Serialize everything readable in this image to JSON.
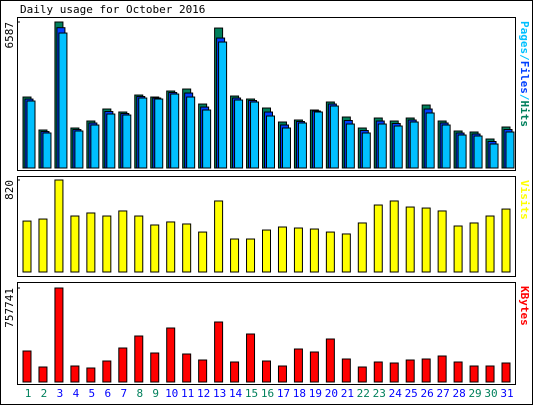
{
  "chart_data": [
    {
      "type": "bar",
      "title": "Daily usage for October 2016",
      "legend_separator": "/",
      "ylim": [
        0,
        6587
      ],
      "yticks": [
        6587
      ],
      "series": [
        {
          "name": "Hits",
          "color": "#00805c",
          "values": [
            3202,
            1714,
            6587,
            1804,
            2120,
            2661,
            2526,
            3292,
            3202,
            3473,
            3563,
            2886,
            6314,
            3247,
            3112,
            2706,
            2075,
            2165,
            2616,
            2977,
            2300,
            1804,
            2255,
            2120,
            2255,
            2841,
            2120,
            1669,
            1624,
            1308,
            1849
          ]
        },
        {
          "name": "Files",
          "color": "#0040ff",
          "values": [
            3110,
            1645,
            6330,
            1735,
            2030,
            2548,
            2458,
            3225,
            3157,
            3405,
            3382,
            2750,
            5863,
            3157,
            3045,
            2525,
            1940,
            2098,
            2571,
            2886,
            2142,
            1690,
            2120,
            2007,
            2165,
            2661,
            2030,
            1578,
            1533,
            1195,
            1736
          ]
        },
        {
          "name": "Pages",
          "color": "#00c0ff",
          "values": [
            3022,
            1579,
            6089,
            1669,
            1939,
            2435,
            2390,
            3157,
            3112,
            3337,
            3202,
            2616,
            5683,
            3067,
            2977,
            2345,
            1804,
            2030,
            2526,
            2796,
            1984,
            1579,
            1984,
            1894,
            2075,
            2481,
            1939,
            1488,
            1443,
            1082,
            1624
          ]
        }
      ]
    },
    {
      "type": "bar",
      "ylim": [
        0,
        820
      ],
      "yticks": [
        820
      ],
      "series": [
        {
          "name": "Visits",
          "color": "#ffff00",
          "values": [
            454,
            472,
            820,
            499,
            526,
            499,
            544,
            499,
            419,
            446,
            428,
            356,
            633,
            294,
            294,
            374,
            401,
            392,
            383,
            356,
            339,
            437,
            597,
            633,
            579,
            570,
            544,
            410,
            437,
            499,
            561
          ]
        }
      ]
    },
    {
      "type": "bar",
      "ylim": [
        0,
        757741
      ],
      "yticks": [
        757741
      ],
      "categories": [
        "1",
        "2",
        "3",
        "4",
        "5",
        "6",
        "7",
        "8",
        "9",
        "10",
        "11",
        "12",
        "13",
        "14",
        "15",
        "16",
        "17",
        "18",
        "19",
        "20",
        "21",
        "22",
        "23",
        "24",
        "25",
        "26",
        "27",
        "28",
        "29",
        "30",
        "31"
      ],
      "category_colors": [
        "#00805c",
        "#00805c",
        "#0000ff",
        "#0000ff",
        "#0000ff",
        "#0000ff",
        "#0000ff",
        "#00805c",
        "#00805c",
        "#0000ff",
        "#0000ff",
        "#0000ff",
        "#0000ff",
        "#0000ff",
        "#00805c",
        "#00805c",
        "#0000ff",
        "#0000ff",
        "#0000ff",
        "#0000ff",
        "#0000ff",
        "#00805c",
        "#00805c",
        "#0000ff",
        "#0000ff",
        "#0000ff",
        "#0000ff",
        "#0000ff",
        "#00805c",
        "#00805c",
        "#0000ff"
      ],
      "series": [
        {
          "name": "KBytes",
          "color": "#ff0000",
          "values": [
            249891,
            120915,
            757741,
            128976,
            112854,
            169281,
            274074,
            370806,
            233769,
            435294,
            225708,
            177342,
            483660,
            161220,
            386928,
            169281,
            128976,
            266013,
            241830,
            346623,
            185403,
            120915,
            161220,
            153159,
            177342,
            185403,
            209586,
            161220,
            128976,
            128976,
            153159
          ]
        }
      ]
    }
  ]
}
